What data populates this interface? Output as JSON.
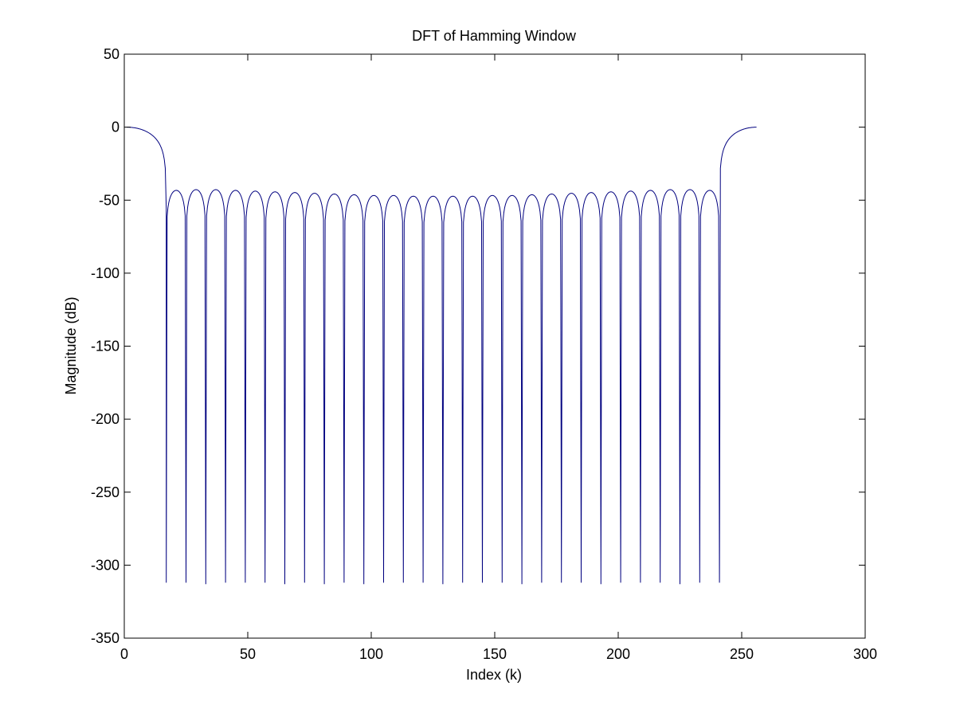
{
  "chart_data": {
    "type": "line",
    "title": "DFT of Hamming Window",
    "xlabel": "Index (k)",
    "ylabel": "Magnitude  (dB)",
    "xlim": [
      0,
      300
    ],
    "ylim": [
      -350,
      50
    ],
    "xticks": [
      0,
      50,
      100,
      150,
      200,
      250,
      300
    ],
    "yticks": [
      50,
      0,
      -50,
      -100,
      -150,
      -200,
      -250,
      -300,
      -350
    ],
    "x_tick_labels": [
      "0",
      "50",
      "100",
      "150",
      "200",
      "250",
      "300"
    ],
    "y_tick_labels": [
      "50",
      "0",
      "-50",
      "-100",
      "-150",
      "-200",
      "-250",
      "-300",
      "-350"
    ],
    "grid": false,
    "line_color": "#00007f",
    "main_lobe": {
      "start_x": 1,
      "end_x": 256,
      "peak_db": 0,
      "null_left_x": 17,
      "null_right_x": 241
    },
    "null_x": [
      17,
      25,
      33,
      41,
      49,
      57,
      65,
      73,
      81,
      89,
      97,
      105,
      113,
      121,
      129,
      137,
      145,
      153,
      161,
      169,
      177,
      185,
      193,
      201,
      209,
      217,
      225,
      233,
      241
    ],
    "null_db": [
      -312,
      -312,
      -313,
      -312,
      -312,
      -312,
      -313,
      -312,
      -313,
      -312,
      -313,
      -312,
      -312,
      -312,
      -313,
      -312,
      -312,
      -312,
      -313,
      -312,
      -312,
      -312,
      -313,
      -312,
      -312,
      -312,
      -313,
      -312,
      -312
    ],
    "sidelobe_peak_x": [
      21,
      29,
      37,
      45,
      53,
      61,
      69,
      77,
      85,
      93,
      101,
      109,
      117,
      125,
      133,
      141,
      149,
      157,
      165,
      173,
      181,
      189,
      197,
      205,
      213,
      221,
      229,
      237
    ],
    "sidelobe_peak_db": [
      -43,
      -42.5,
      -42.5,
      -43,
      -43.5,
      -44,
      -44.5,
      -45,
      -45.5,
      -46,
      -46.5,
      -46.5,
      -47,
      -47,
      -47,
      -47,
      -46.5,
      -46.5,
      -46,
      -45.5,
      -45,
      -44.5,
      -44,
      -43.5,
      -43,
      -42.5,
      -42.5,
      -43
    ]
  }
}
